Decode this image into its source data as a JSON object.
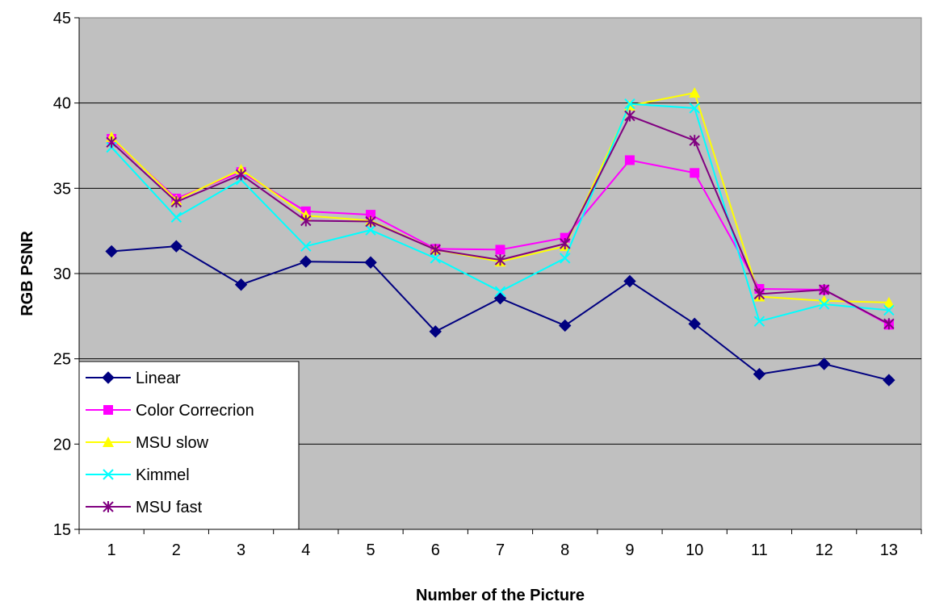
{
  "chart_data": {
    "type": "line",
    "title": "",
    "xlabel": "Number of the Picture",
    "ylabel": "RGB PSNR",
    "x": [
      "1",
      "2",
      "3",
      "4",
      "5",
      "6",
      "7",
      "8",
      "9",
      "10",
      "11",
      "12",
      "13"
    ],
    "ylim": [
      15,
      45
    ],
    "yticks": [
      "15",
      "20",
      "25",
      "30",
      "35",
      "40",
      "45"
    ],
    "grid": true,
    "legend_position": "bottom-left",
    "plot_background": "#c0c0c0",
    "series": [
      {
        "name": "Linear",
        "color": "#000080",
        "marker": "diamond",
        "values": [
          31.3,
          31.6,
          29.35,
          30.7,
          30.65,
          26.6,
          28.55,
          26.95,
          29.55,
          27.05,
          24.1,
          24.7,
          23.75
        ]
      },
      {
        "name": "Color Correcrion",
        "color": "#ff00ff",
        "marker": "square",
        "values": [
          37.9,
          34.4,
          35.95,
          33.65,
          33.45,
          31.45,
          31.4,
          32.1,
          36.65,
          35.9,
          29.1,
          29.05,
          27.0
        ]
      },
      {
        "name": "MSU slow",
        "color": "#ffff00",
        "marker": "triangle",
        "values": [
          38.0,
          34.3,
          36.1,
          33.4,
          33.1,
          31.4,
          30.7,
          31.6,
          39.85,
          40.6,
          28.65,
          28.4,
          28.3
        ]
      },
      {
        "name": "Kimmel",
        "color": "#00ffff",
        "marker": "x",
        "values": [
          37.4,
          33.3,
          35.5,
          31.6,
          32.55,
          30.9,
          28.95,
          30.9,
          39.95,
          39.7,
          27.2,
          28.2,
          27.85
        ]
      },
      {
        "name": "MSU fast",
        "color": "#800080",
        "marker": "asterisk",
        "values": [
          37.7,
          34.2,
          35.8,
          33.1,
          33.05,
          31.4,
          30.8,
          31.75,
          39.25,
          37.8,
          28.8,
          29.05,
          27.05
        ]
      }
    ]
  }
}
